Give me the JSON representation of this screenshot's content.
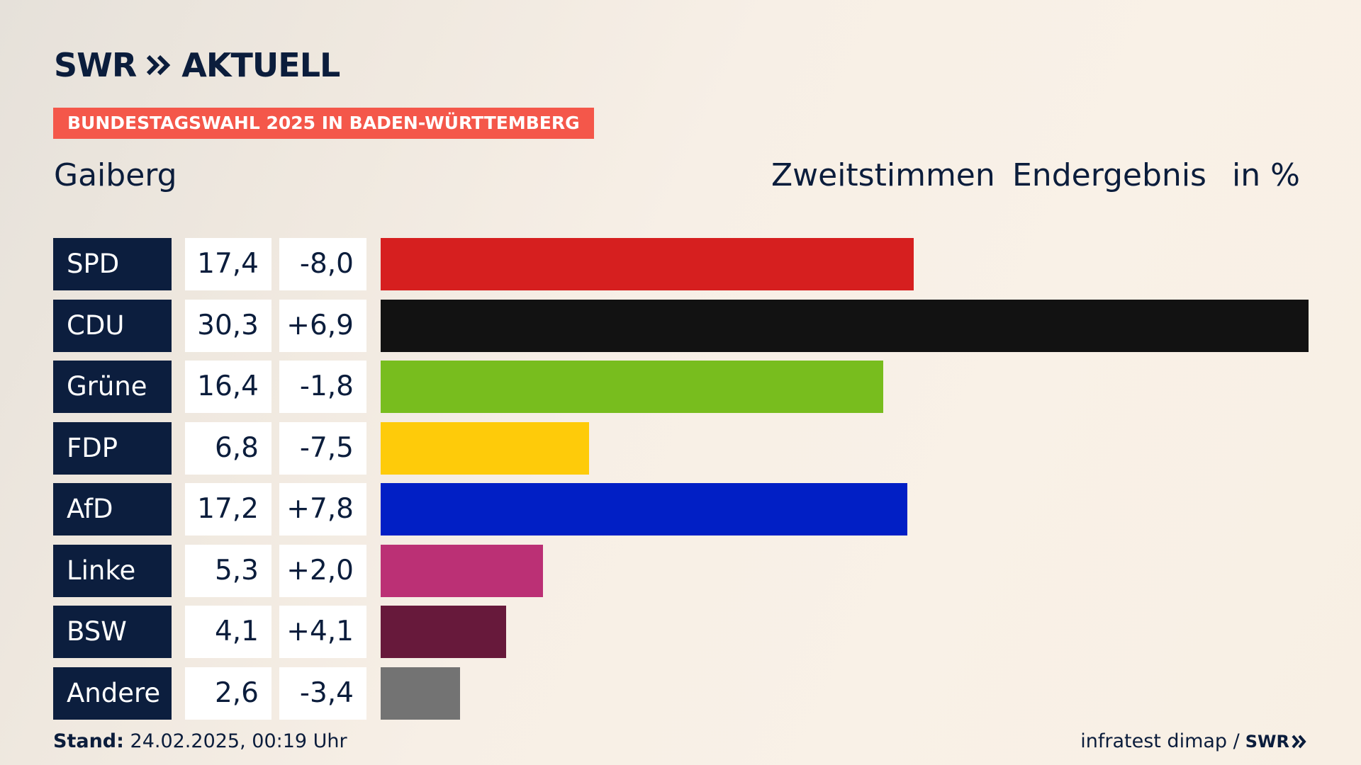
{
  "brand": {
    "logo_name": "SWR",
    "logo_product": "AKTUELL",
    "accent_color": "#f4574a",
    "navy_color": "#0c1e3e"
  },
  "banner": {
    "text": "BUNDESTAGSWAHL 2025 IN BADEN-WÜRTTEMBERG"
  },
  "location": "Gaiberg",
  "header": {
    "vote_type": "Zweitstimmen",
    "status": "Endergebnis",
    "unit": "in %"
  },
  "chart_data": {
    "type": "bar",
    "orientation": "horizontal",
    "title": "",
    "xlabel": "",
    "ylabel": "",
    "xlim": [
      0,
      30.3
    ],
    "grid": false,
    "categories": [
      "SPD",
      "CDU",
      "Grüne",
      "FDP",
      "AfD",
      "Linke",
      "BSW",
      "Andere"
    ],
    "values": [
      17.4,
      30.3,
      16.4,
      6.8,
      17.2,
      5.3,
      4.1,
      2.6
    ],
    "values_text": [
      "17,4",
      "30,3",
      "16,4",
      "6,8",
      "17,2",
      "5,3",
      "4,1",
      "2,6"
    ],
    "changes_text": [
      "-8,0",
      "+6,9",
      "-1,8",
      "-7,5",
      "+7,8",
      "+2,0",
      "+4,1",
      "-3,4"
    ],
    "colors": [
      "#d61f1f",
      "#121212",
      "#78bd1e",
      "#fecb0a",
      "#011fc5",
      "#bb3075",
      "#67193b",
      "#737373"
    ]
  },
  "footer": {
    "stand_label": "Stand:",
    "stand_value": "24.02.2025, 00:19 Uhr",
    "source": "infratest dimap /",
    "source_logo": "SWR"
  }
}
